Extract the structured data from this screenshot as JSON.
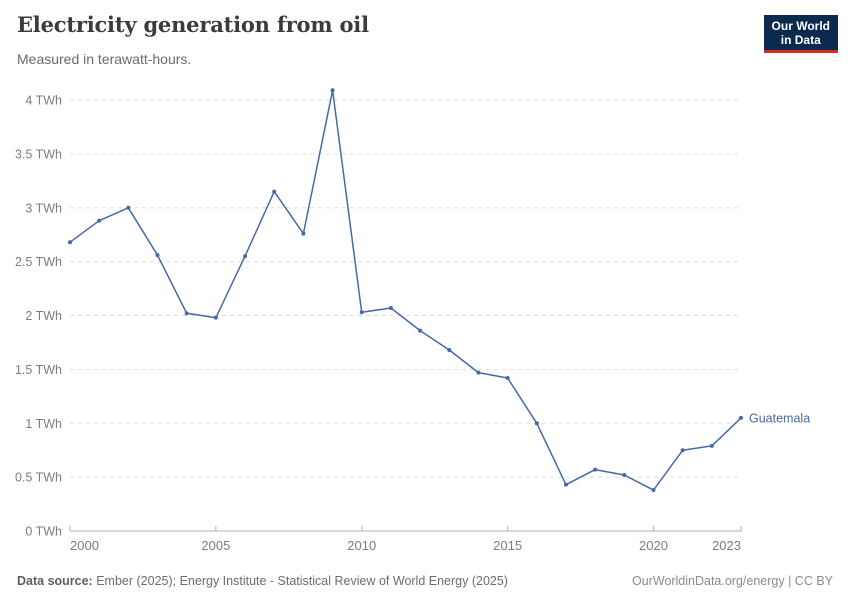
{
  "header": {
    "title": "Electricity generation from oil",
    "subtitle": "Measured in terawatt-hours.",
    "logo": {
      "line1": "Our World",
      "line2": "in Data"
    }
  },
  "colors": {
    "series": "#4769A5",
    "logo_bg": "#0B2A4E",
    "logo_accent": "#DC2A1F",
    "grid": "#dddddd",
    "axis": "#b0b0b0",
    "tick_text": "#7d7d7d"
  },
  "chart_data": {
    "type": "line",
    "title": "Electricity generation from oil",
    "subtitle": "Measured in terawatt-hours.",
    "unit": "TWh",
    "x": [
      2000,
      2001,
      2002,
      2003,
      2004,
      2005,
      2006,
      2007,
      2008,
      2009,
      2010,
      2011,
      2012,
      2013,
      2014,
      2015,
      2016,
      2017,
      2018,
      2019,
      2020,
      2021,
      2022,
      2023
    ],
    "series": [
      {
        "name": "Guatemala",
        "color": "#4769A5",
        "values": [
          2.68,
          2.88,
          3.0,
          2.56,
          2.02,
          1.98,
          2.55,
          3.15,
          2.76,
          4.09,
          2.03,
          2.07,
          1.86,
          1.68,
          1.47,
          1.42,
          1.0,
          0.43,
          0.57,
          0.52,
          0.38,
          0.75,
          0.79,
          1.05
        ]
      }
    ],
    "xticks": [
      2000,
      2005,
      2010,
      2015,
      2020,
      2023
    ],
    "yticks": [
      0,
      0.5,
      1,
      1.5,
      2,
      2.5,
      3,
      3.5,
      4
    ],
    "ytick_suffix": " TWh",
    "xlim": [
      2000,
      2023
    ],
    "ylim": [
      0,
      4
    ],
    "grid": "horizontal-dashed",
    "legend_position": "end-of-line-label"
  },
  "footer": {
    "datasource_label": "Data source:",
    "datasource_text": "Ember (2025); Energy Institute - Statistical Review of World Energy (2025)",
    "credit": "OurWorldinData.org/energy | CC BY"
  }
}
